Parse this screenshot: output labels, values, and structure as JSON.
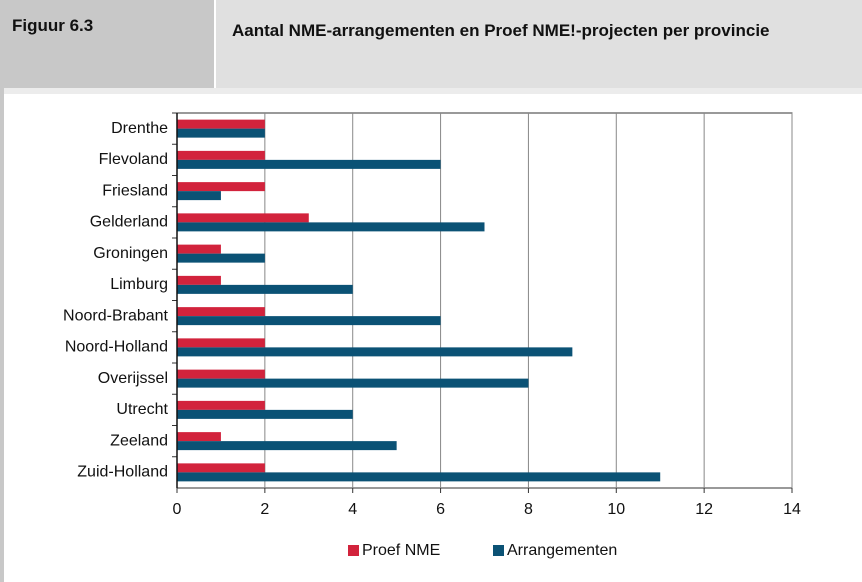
{
  "chart_data": {
    "type": "bar",
    "orientation": "horizontal",
    "figure_label": "Figuur 6.3",
    "title": "Aantal NME-arrangementen en Proef NME!-projecten per provincie",
    "categories": [
      "Drenthe",
      "Flevoland",
      "Friesland",
      "Gelderland",
      "Groningen",
      "Limburg",
      "Noord-Brabant",
      "Noord-Holland",
      "Overijssel",
      "Utrecht",
      "Zeeland",
      "Zuid-Holland"
    ],
    "series": [
      {
        "name": "Proef NME",
        "color": "#d2233c",
        "values": [
          2,
          2,
          2,
          3,
          1,
          1,
          2,
          2,
          2,
          2,
          1,
          2
        ]
      },
      {
        "name": "Arrangementen",
        "color": "#0b5275",
        "values": [
          2,
          6,
          1,
          7,
          2,
          4,
          6,
          9,
          8,
          4,
          5,
          11
        ]
      }
    ],
    "xlim": [
      0,
      14
    ],
    "xticks": [
      0,
      2,
      4,
      6,
      8,
      10,
      12,
      14
    ],
    "grid": true,
    "legend": "bottom"
  }
}
